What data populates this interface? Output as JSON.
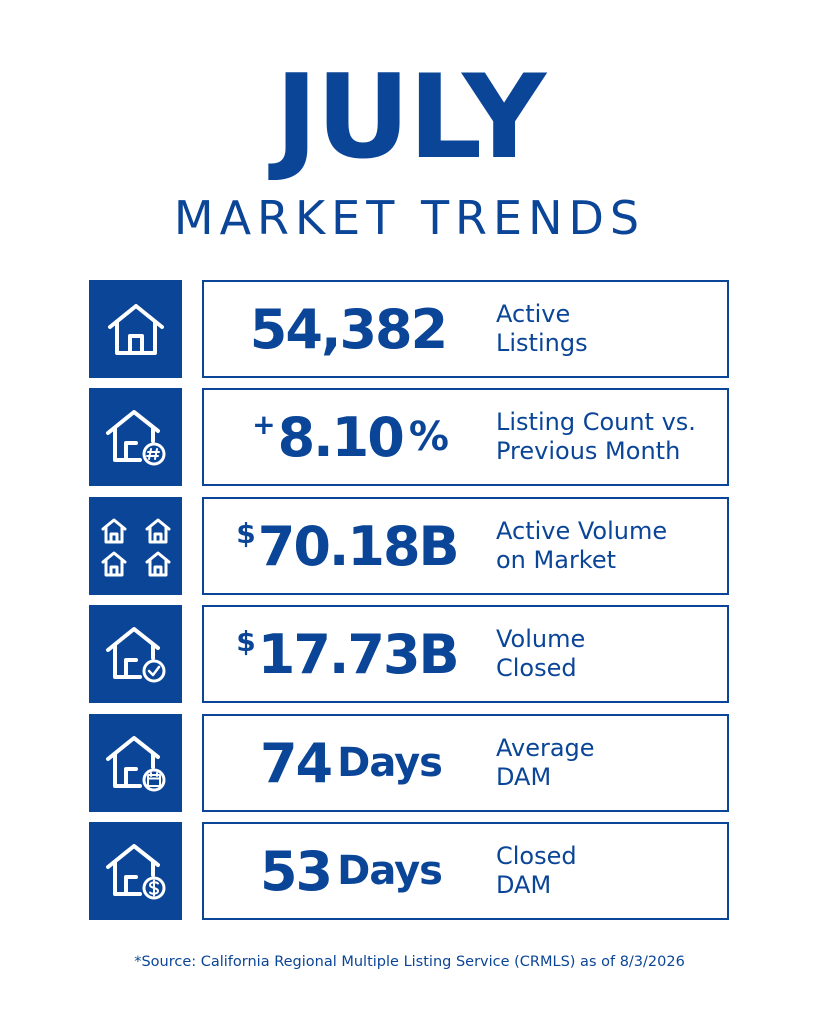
{
  "header": {
    "title": "JULY",
    "subtitle": "MARKET TRENDS"
  },
  "colors": {
    "brand": "#0b4597",
    "background": "#ffffff"
  },
  "stats": [
    {
      "icon": "house-icon",
      "prefix": "",
      "value": "54,382",
      "unit": "",
      "label_line1": "Active",
      "label_line2": "Listings"
    },
    {
      "icon": "house-hash-icon",
      "prefix": "+",
      "value": "8.10",
      "unit": "%",
      "label_line1": "Listing Count vs.",
      "label_line2": "Previous Month"
    },
    {
      "icon": "four-houses-icon",
      "prefix": "$",
      "value": "70.18B",
      "unit": "",
      "label_line1": "Active Volume",
      "label_line2": "on Market"
    },
    {
      "icon": "house-check-icon",
      "prefix": "$",
      "value": "17.73B",
      "unit": "",
      "label_line1": "Volume",
      "label_line2": "Closed"
    },
    {
      "icon": "house-calendar-icon",
      "prefix": "",
      "value": "74",
      "unit": "Days",
      "label_line1": "Average",
      "label_line2": "DAM"
    },
    {
      "icon": "house-dollar-icon",
      "prefix": "",
      "value": "53",
      "unit": "Days",
      "label_line1": "Closed",
      "label_line2": "DAM"
    }
  ],
  "footer": {
    "source": "*Source: California Regional Multiple Listing Service (CRMLS) as of 8/3/2026"
  }
}
